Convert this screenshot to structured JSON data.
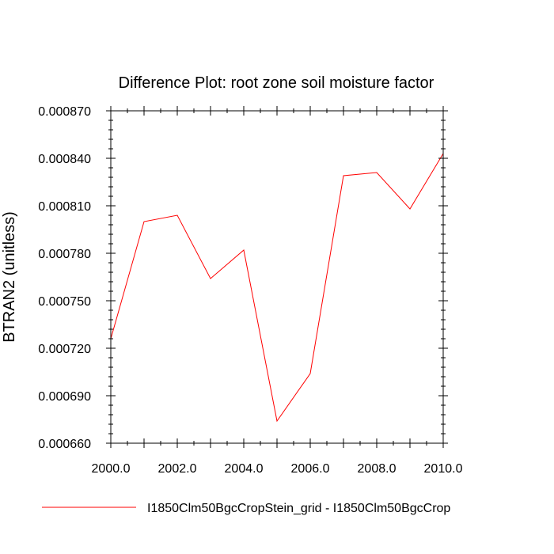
{
  "chart_data": {
    "type": "line",
    "title": "Difference Plot: root zone soil moisture factor",
    "xlabel": "",
    "ylabel": "BTRAN2  (unitless)",
    "xlim": [
      2000,
      2010
    ],
    "ylim": [
      0.00066,
      0.00087
    ],
    "x_ticks": [
      2000,
      2002,
      2004,
      2006,
      2008,
      2010
    ],
    "x_tick_labels": [
      "2000.0",
      "2002.0",
      "2004.0",
      "2006.0",
      "2008.0",
      "2010.0"
    ],
    "y_ticks": [
      0.00066,
      0.00069,
      0.00072,
      0.00075,
      0.00078,
      0.00081,
      0.00084,
      0.00087
    ],
    "y_tick_labels": [
      "0.000660",
      "0.000690",
      "0.000720",
      "0.000750",
      "0.000780",
      "0.000810",
      "0.000840",
      "0.000870"
    ],
    "grid": false,
    "legend_position": "bottom",
    "series": [
      {
        "name": "I1850Clm50BgcCropStein_grid - I1850Clm50BgcCrop",
        "color": "#ff0000",
        "x": [
          2000,
          2001,
          2002,
          2003,
          2004,
          2005,
          2006,
          2007,
          2008,
          2009,
          2010
        ],
        "y": [
          0.000726,
          0.0008,
          0.000804,
          0.000764,
          0.000782,
          0.000674,
          0.000704,
          0.000829,
          0.000831,
          0.000808,
          0.000843
        ]
      }
    ]
  }
}
